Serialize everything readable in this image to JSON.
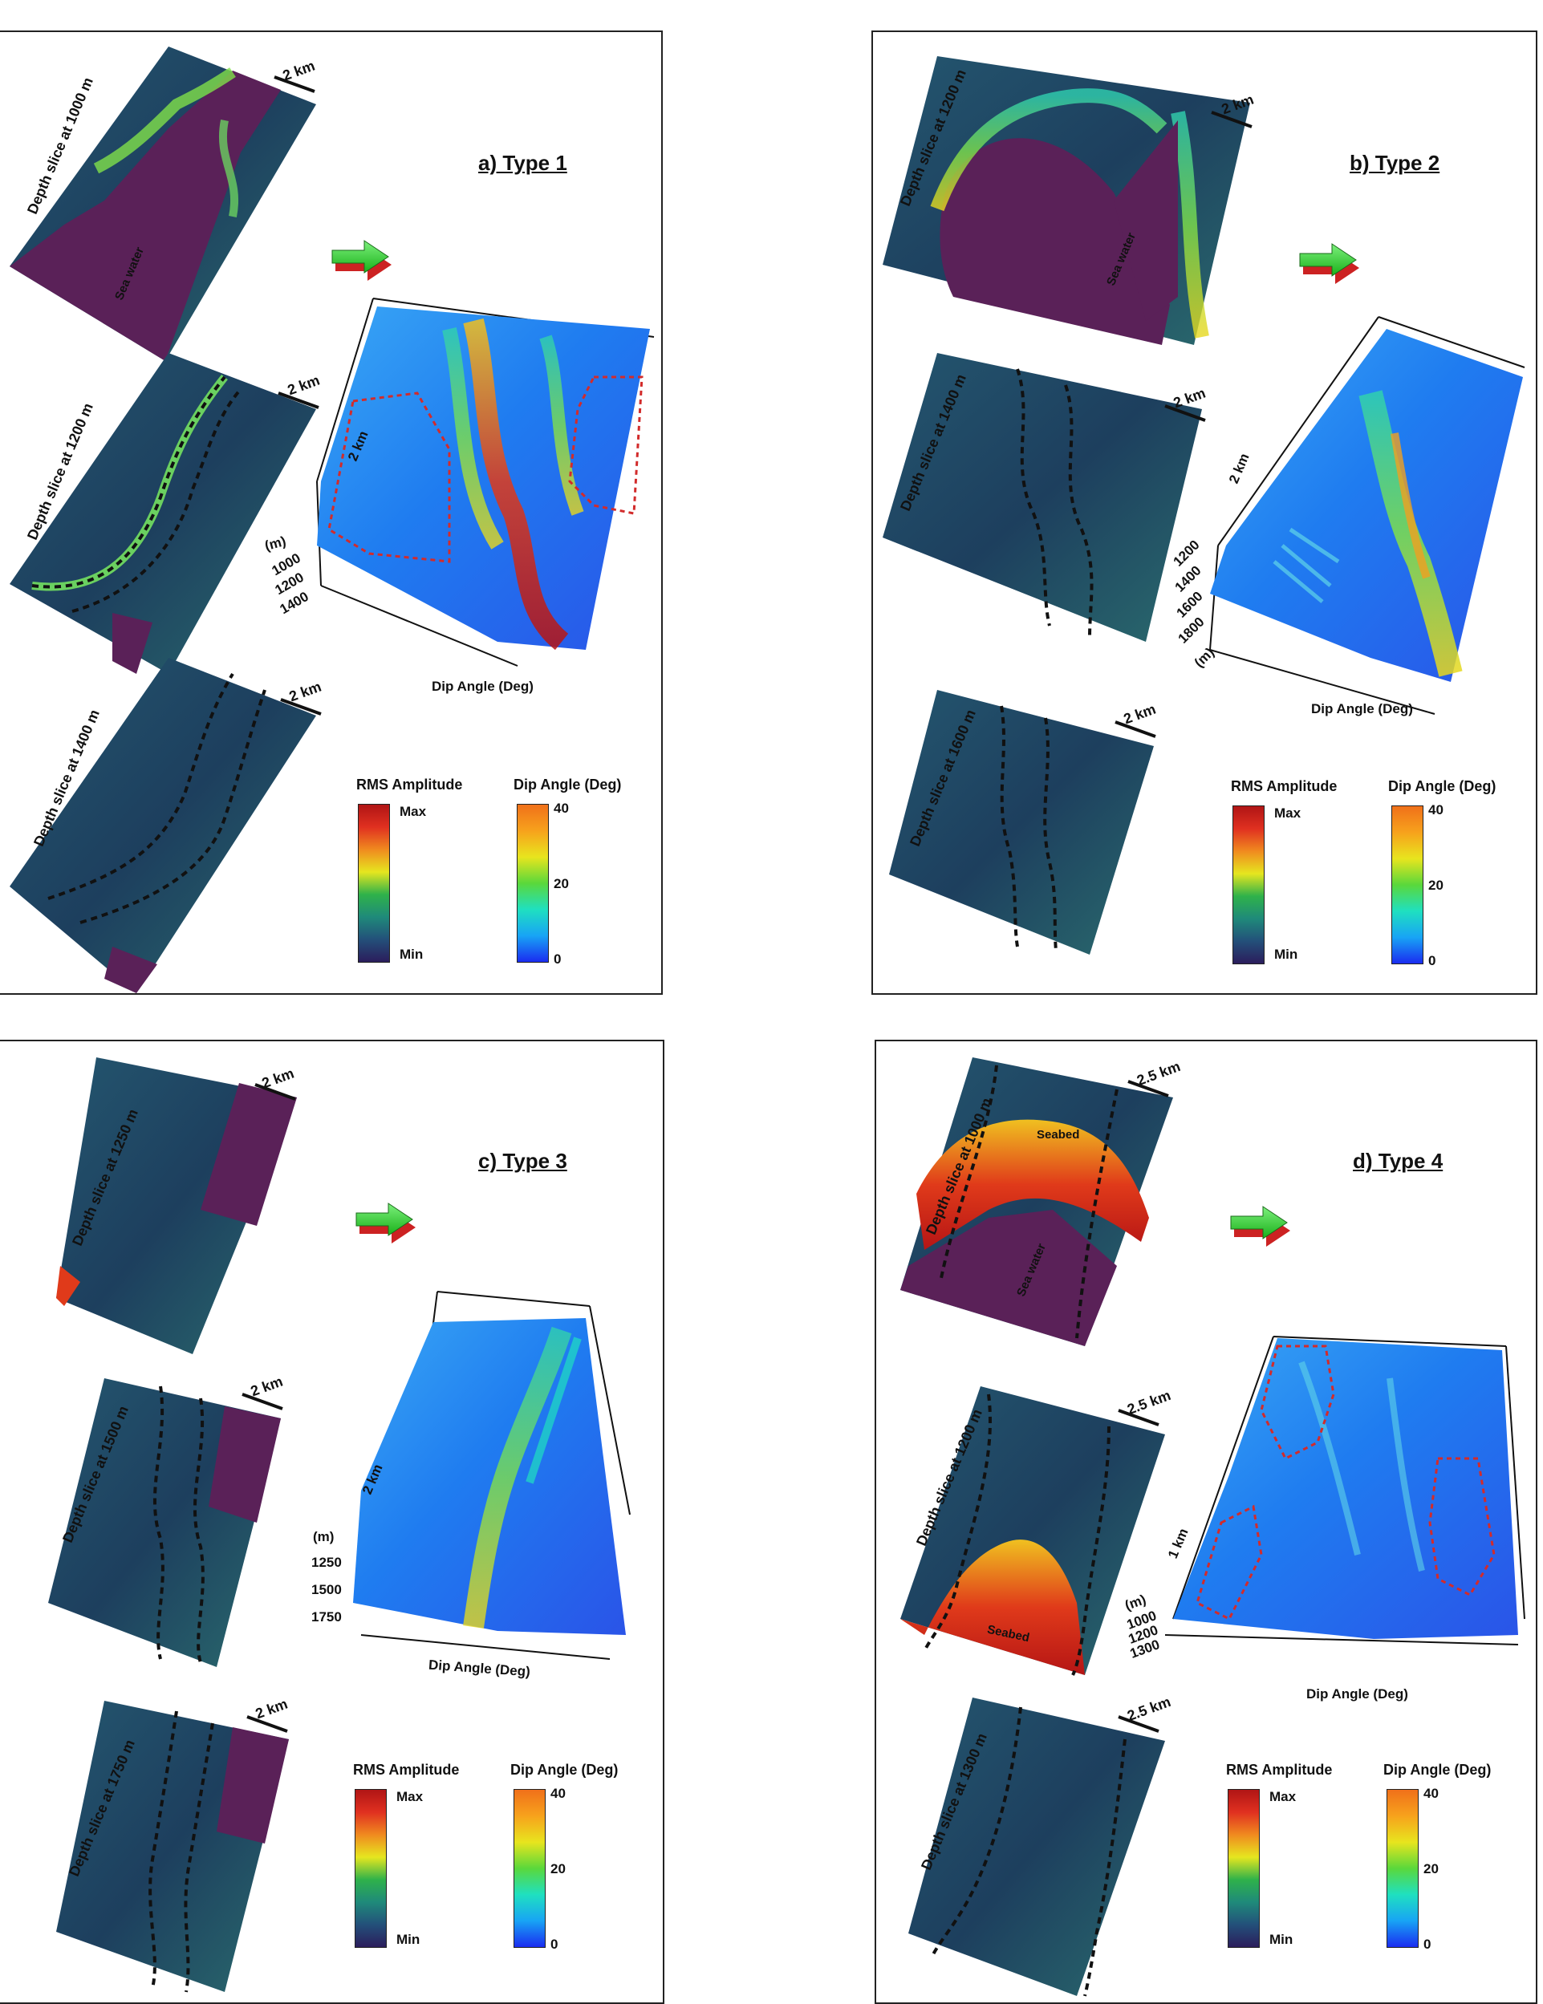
{
  "colors": {
    "rms_gradient": [
      "#2b1d5c",
      "#23507a",
      "#1f8a7a",
      "#2fb24a",
      "#e6e61f",
      "#f08a1f",
      "#d62020",
      "#b01515"
    ],
    "dip_gradient": [
      "#1a2cf0",
      "#18a4f5",
      "#1fe0c0",
      "#5ad83b",
      "#e8e51e",
      "#f7a21c",
      "#f0701a"
    ],
    "sea_water": "#5a2158",
    "slice_base": "#1e4a66",
    "outline_dash": "#d22b2b"
  },
  "legend": {
    "rms_title": "RMS Amplitude",
    "rms_max": "Max",
    "rms_min": "Min",
    "dip_title": "Dip Angle (Deg)",
    "dip_ticks": [
      "40",
      "20",
      "0"
    ]
  },
  "panels": [
    {
      "title": "a) Type 1",
      "slices": [
        {
          "label": "Depth slice at 1000 m",
          "scale": "2 km",
          "note": "Sea water"
        },
        {
          "label": "Depth slice at 1200 m",
          "scale": "2 km"
        },
        {
          "label": "Depth slice at 1400 m",
          "scale": "2 km"
        }
      ],
      "surface": {
        "scale": "2 km",
        "unit": "(m)",
        "depths": [
          "1000",
          "1200",
          "1400"
        ],
        "axis": "Dip Angle (Deg)"
      }
    },
    {
      "title": "b) Type 2",
      "slices": [
        {
          "label": "Depth slice at 1200 m",
          "scale": "2 km",
          "note": "Sea water"
        },
        {
          "label": "Depth slice at 1400 m",
          "scale": "2 km"
        },
        {
          "label": "Depth slice at 1600 m",
          "scale": "2 km"
        }
      ],
      "surface": {
        "scale": "2 km",
        "unit": "(m)",
        "depths": [
          "1200",
          "1400",
          "1600",
          "1800"
        ],
        "axis": "Dip Angle (Deg)"
      }
    },
    {
      "title": "c) Type 3",
      "slices": [
        {
          "label": "Depth slice at 1250 m",
          "scale": "2 km"
        },
        {
          "label": "Depth slice at 1500 m",
          "scale": "2 km"
        },
        {
          "label": "Depth slice at 1750 m",
          "scale": "2 km"
        }
      ],
      "surface": {
        "scale": "2 km",
        "unit": "(m)",
        "depths": [
          "1250",
          "1500",
          "1750"
        ],
        "axis": "Dip Angle (Deg)"
      }
    },
    {
      "title": "d) Type 4",
      "slices": [
        {
          "label": "Depth slice at 1000 m",
          "scale": "2.5 km",
          "note": "Sea water",
          "note2": "Seabed"
        },
        {
          "label": "Depth slice at 1200 m",
          "scale": "2.5 km",
          "note": "Seabed"
        },
        {
          "label": "Depth slice at 1300 m",
          "scale": "2.5 km"
        }
      ],
      "surface": {
        "scale": "1 km",
        "unit": "(m)",
        "depths": [
          "1000",
          "1200",
          "1300"
        ],
        "axis": "Dip Angle (Deg)"
      }
    }
  ]
}
